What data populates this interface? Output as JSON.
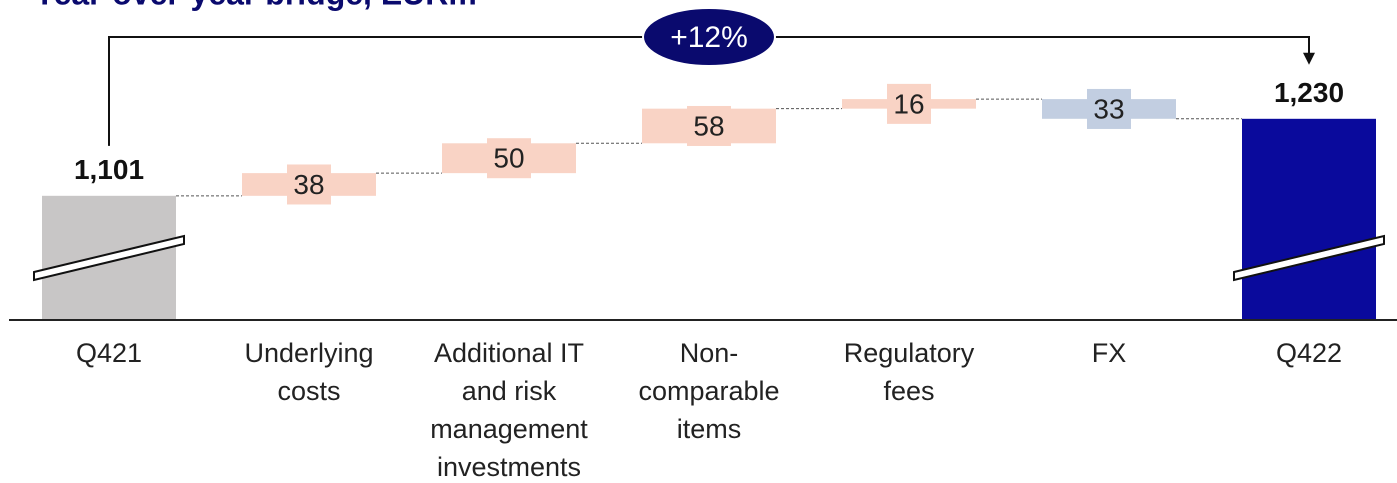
{
  "chart_data": {
    "type": "waterfall",
    "title": "Year-over-year bridge, EURm",
    "categories": [
      "Q421",
      "Underlying costs",
      "Additional IT and risk management investments",
      "Non-comparable items",
      "Regulatory fees",
      "FX",
      "Q422"
    ],
    "values": [
      1101,
      38,
      50,
      58,
      16,
      -33,
      1230
    ],
    "value_labels": [
      "1,101",
      "38",
      "50",
      "58",
      "16",
      "33",
      "1,230"
    ],
    "measure": [
      "absolute",
      "relative",
      "relative",
      "relative",
      "relative",
      "relative",
      "total"
    ],
    "colors": [
      "#c8c6c6",
      "#f9d3c5",
      "#f9d3c5",
      "#f9d3c5",
      "#f9d3c5",
      "#c2cee1",
      "#0a0a9c"
    ],
    "annotation": "+12%",
    "ylim": [
      893,
      1429
    ]
  }
}
